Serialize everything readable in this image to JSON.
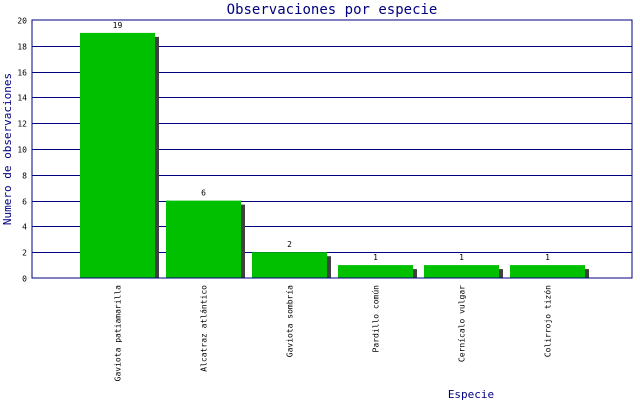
{
  "chart_data": {
    "type": "bar",
    "title": "Observaciones por especie",
    "xlabel": "Especie",
    "ylabel": "Numero de observaciones",
    "categories": [
      "Gaviota patiamarilla",
      "Alcatraz atlántico",
      "Gaviota sombría",
      "Pardillo común",
      "Cernícalo vulgar",
      "Colirrojo tizón"
    ],
    "values": [
      19,
      6,
      2,
      1,
      1,
      1
    ],
    "ylim": [
      0,
      20
    ],
    "yticks": [
      0,
      2,
      4,
      6,
      8,
      10,
      12,
      14,
      16,
      18,
      20
    ],
    "grid": true,
    "legend": "none",
    "colors": {
      "bar": "#00c000",
      "shadow": "#404040",
      "grid": "#000080",
      "axis": "#000080",
      "text": "#000080"
    }
  }
}
